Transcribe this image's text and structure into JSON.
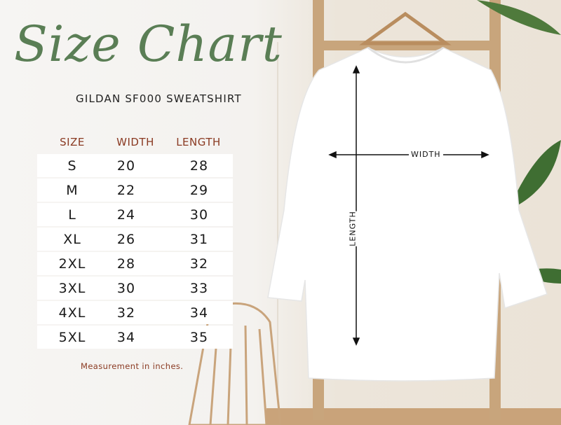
{
  "title": "Size Chart",
  "subtitle": "GILDAN SF000 SWEATSHIRT",
  "table": {
    "headers": [
      "SIZE",
      "WIDTH",
      "LENGTH"
    ],
    "rows": [
      [
        "S",
        "20",
        "28"
      ],
      [
        "M",
        "22",
        "29"
      ],
      [
        "L",
        "24",
        "30"
      ],
      [
        "XL",
        "26",
        "31"
      ],
      [
        "2XL",
        "28",
        "32"
      ],
      [
        "3XL",
        "30",
        "33"
      ],
      [
        "4XL",
        "32",
        "34"
      ],
      [
        "5XL",
        "34",
        "35"
      ]
    ]
  },
  "note": "Measurement in inches.",
  "diagram": {
    "width_label": "WIDTH",
    "length_label": "LENGTH"
  },
  "colors": {
    "title": "#5a7e55",
    "header": "#8a3a22",
    "shirt": "#ffffff"
  }
}
